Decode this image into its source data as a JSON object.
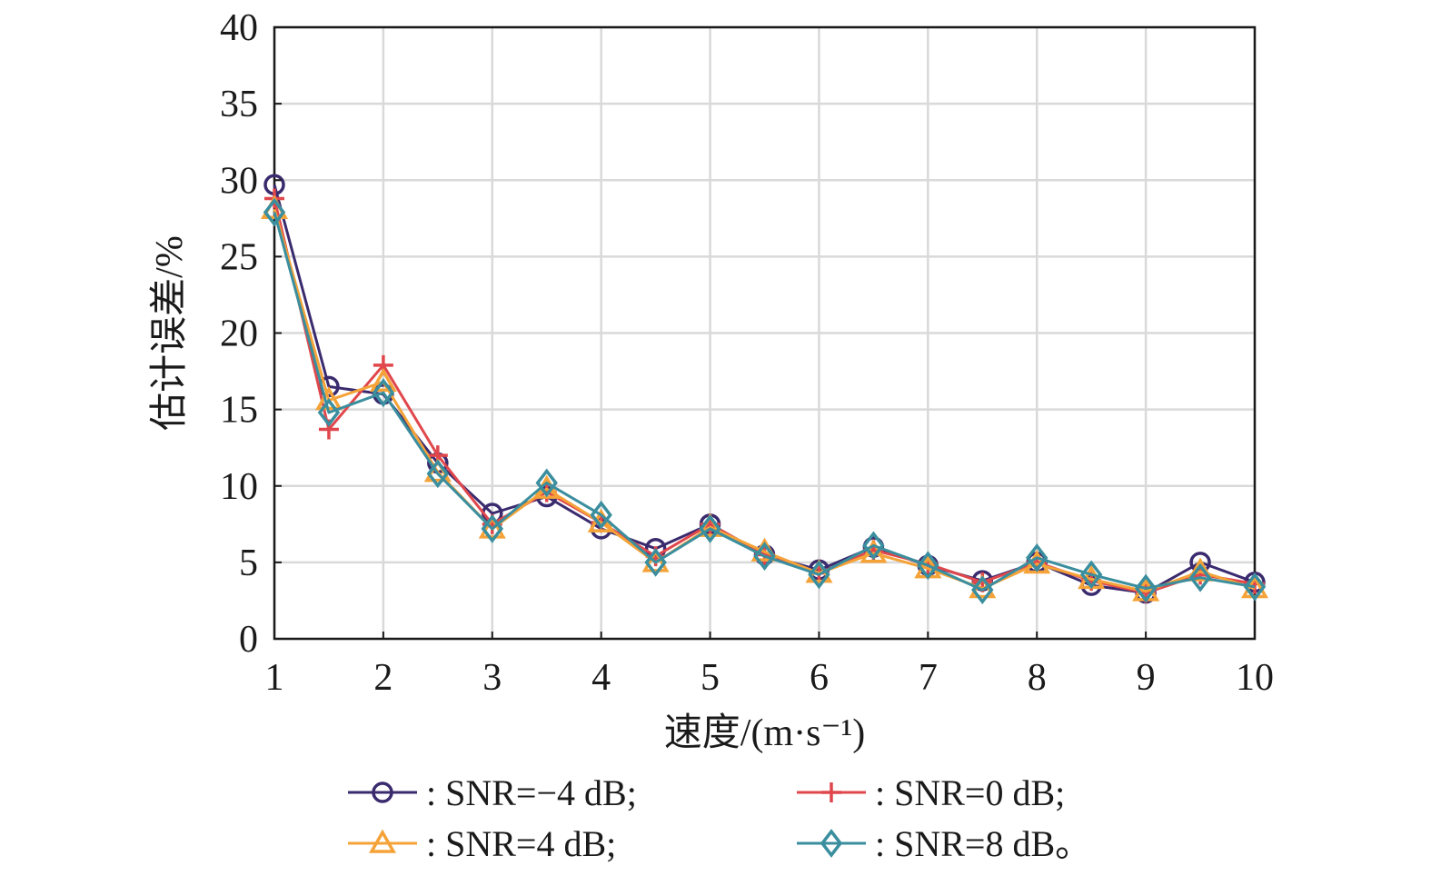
{
  "chart_data": {
    "type": "line",
    "title": "",
    "xlabel": "速度/(m·s⁻¹)",
    "ylabel": "估计误差/%",
    "xlim": [
      1,
      10
    ],
    "ylim": [
      0,
      40
    ],
    "xticks": [
      1,
      2,
      3,
      4,
      5,
      6,
      7,
      8,
      9,
      10
    ],
    "yticks": [
      0,
      5,
      10,
      15,
      20,
      25,
      30,
      35,
      40
    ],
    "xtick_labels": [
      "1",
      "2",
      "3",
      "4",
      "5",
      "6",
      "7",
      "8",
      "9",
      "10"
    ],
    "ytick_labels": [
      "0",
      "5",
      "10",
      "15",
      "20",
      "25",
      "30",
      "35",
      "40"
    ],
    "grid": true,
    "legend_position": "bottom",
    "x": [
      1,
      1.5,
      2,
      2.5,
      3,
      3.5,
      4,
      4.5,
      5,
      5.5,
      6,
      6.5,
      7,
      7.5,
      8,
      8.5,
      9,
      9.5,
      10
    ],
    "series": [
      {
        "name": ": SNR=−4 dB;",
        "color": "#3a2a6e",
        "marker": "circle",
        "values": [
          29.7,
          16.5,
          16.0,
          11.5,
          8.2,
          9.3,
          7.2,
          5.9,
          7.5,
          5.5,
          4.5,
          6.0,
          4.8,
          3.8,
          5.0,
          3.5,
          3.0,
          5.0,
          3.7
        ]
      },
      {
        "name": ":  SNR=0 dB;",
        "color": "#e0474c",
        "marker": "plus",
        "values": [
          28.8,
          13.7,
          17.9,
          12.0,
          7.5,
          9.6,
          7.6,
          5.4,
          7.5,
          5.5,
          4.3,
          5.8,
          4.9,
          3.7,
          5.0,
          3.8,
          3.0,
          4.2,
          3.6
        ]
      },
      {
        "name": ": SNR=4 dB;",
        "color": "#f5a338",
        "marker": "triangle",
        "values": [
          28.1,
          15.6,
          16.8,
          10.9,
          7.2,
          9.8,
          7.6,
          5.0,
          7.3,
          5.7,
          4.3,
          5.6,
          4.6,
          3.3,
          4.9,
          3.9,
          3.1,
          4.4,
          3.3
        ]
      },
      {
        "name": ":  SNR=8 dB。",
        "color": "#3a8e9e",
        "marker": "diamond",
        "values": [
          27.9,
          14.8,
          16.1,
          10.8,
          7.2,
          10.2,
          8.1,
          5.0,
          7.2,
          5.4,
          4.2,
          6.1,
          4.8,
          3.2,
          5.3,
          4.2,
          3.3,
          4.0,
          3.4
        ]
      }
    ]
  }
}
